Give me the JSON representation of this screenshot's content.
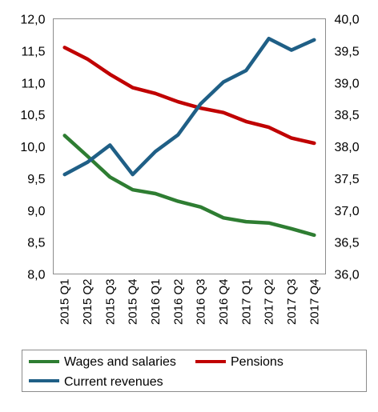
{
  "chart_data": {
    "type": "line",
    "categories": [
      "2015 Q1",
      "2015 Q2",
      "2015 Q3",
      "2015 Q4",
      "2016 Q1",
      "2016 Q2",
      "2016 Q3",
      "2016 Q4",
      "2017 Q1",
      "2017 Q2",
      "2017 Q3",
      "2017 Q4"
    ],
    "left_axis": {
      "ylim": [
        8.0,
        12.0
      ],
      "ticks": [
        "8,0",
        "8,5",
        "9,0",
        "9,5",
        "10,0",
        "10,5",
        "11,0",
        "11,5",
        "12,0"
      ]
    },
    "right_axis": {
      "ylim": [
        36.0,
        40.0
      ],
      "ticks": [
        "36,0",
        "36,5",
        "37,0",
        "37,5",
        "38,0",
        "38,5",
        "39,0",
        "39,5",
        "40,0"
      ]
    },
    "series": [
      {
        "name": "Wages and salaries",
        "axis": "left",
        "color": "#2e7d32",
        "values": [
          10.17,
          9.85,
          9.52,
          9.32,
          9.26,
          9.14,
          9.05,
          8.88,
          8.82,
          8.8,
          8.71,
          8.61
        ]
      },
      {
        "name": "Pensions",
        "axis": "left",
        "color": "#c00000",
        "values": [
          11.55,
          11.37,
          11.13,
          10.92,
          10.83,
          10.7,
          10.6,
          10.53,
          10.39,
          10.3,
          10.13,
          10.05
        ]
      },
      {
        "name": "Current revenues",
        "axis": "right",
        "color": "#1f5f86",
        "values": [
          37.56,
          37.75,
          38.02,
          37.56,
          37.92,
          38.18,
          38.67,
          39.01,
          39.19,
          39.69,
          39.51,
          39.67
        ]
      }
    ],
    "grid": false,
    "legend_position": "bottom"
  }
}
